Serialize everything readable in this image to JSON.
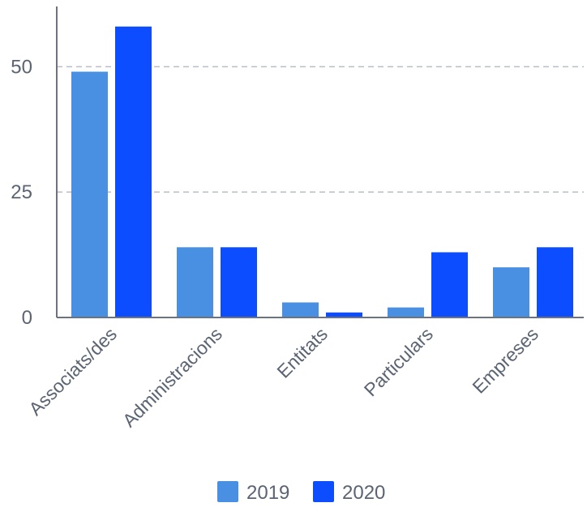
{
  "chart_data": {
    "type": "bar",
    "title": "",
    "xlabel": "",
    "ylabel": "",
    "categories": [
      "Associats/des",
      "Administracions",
      "Entitats",
      "Particulars",
      "Empreses"
    ],
    "series": [
      {
        "name": "2019",
        "values": [
          49,
          14,
          3,
          2,
          10
        ],
        "color": "#4a90e2"
      },
      {
        "name": "2020",
        "values": [
          58,
          14,
          1,
          13,
          14
        ],
        "color": "#0b4dff"
      }
    ],
    "ylim": [
      0,
      62
    ],
    "yticks": [
      0,
      25,
      50
    ],
    "grid": true,
    "legend_position": "bottom-center"
  }
}
